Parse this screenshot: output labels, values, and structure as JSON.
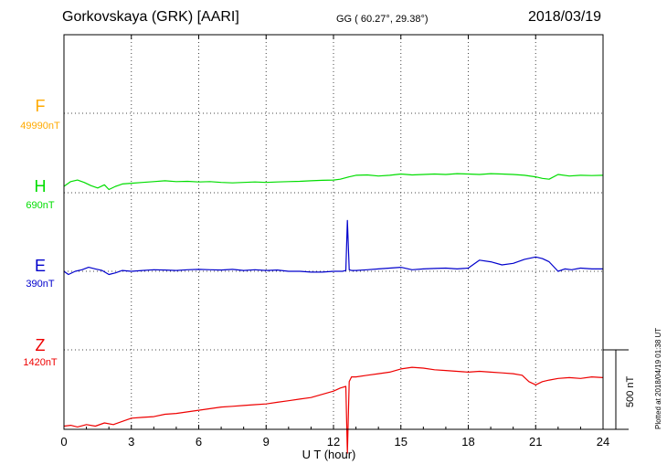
{
  "header": {
    "station": "Gorkovskaya (GRK)  [AARI]",
    "coordinates": "GG ( 60.27°,  29.38°)",
    "date": "2018/03/19"
  },
  "components": [
    {
      "id": "F",
      "letter": "F",
      "baseline": "49990nT",
      "color": "#ffaa00"
    },
    {
      "id": "H",
      "letter": "H",
      "baseline": "690nT",
      "color": "#00dd00"
    },
    {
      "id": "E",
      "letter": "E",
      "baseline": "390nT",
      "color": "#0000cc"
    },
    {
      "id": "Z",
      "letter": "Z",
      "baseline": "1420nT",
      "color": "#ee0000"
    }
  ],
  "scale_bar": {
    "label": "500 nT"
  },
  "footer": "Plotted at 2018/04/19 01:38 UT",
  "chart_data": {
    "type": "line",
    "xlabel": "U T (hour)",
    "xlim": [
      0,
      24
    ],
    "x_ticks": [
      0,
      3,
      6,
      9,
      12,
      15,
      18,
      21,
      24
    ],
    "grid": true,
    "series": [
      {
        "name": "H",
        "unit": "nT",
        "baseline": 690,
        "color": "#00dd00",
        "x": [
          0,
          0.3,
          0.6,
          0.9,
          1.2,
          1.5,
          1.8,
          2.0,
          2.3,
          2.6,
          3,
          3.5,
          4,
          4.5,
          5,
          5.5,
          6,
          6.5,
          7,
          7.5,
          8,
          8.5,
          9,
          9.5,
          10,
          10.5,
          11,
          11.5,
          12,
          12.3,
          12.7,
          13,
          13.5,
          14,
          14.5,
          15,
          15.5,
          16,
          16.5,
          17,
          17.5,
          18,
          18.5,
          19,
          19.5,
          20,
          20.5,
          21,
          21.3,
          21.6,
          22,
          22.5,
          23,
          23.5,
          24
        ],
        "y": [
          40,
          70,
          80,
          65,
          45,
          30,
          50,
          20,
          40,
          55,
          60,
          65,
          70,
          75,
          70,
          72,
          68,
          70,
          65,
          62,
          65,
          68,
          65,
          68,
          70,
          72,
          75,
          78,
          80,
          85,
          100,
          110,
          112,
          105,
          110,
          118,
          112,
          115,
          118,
          115,
          120,
          118,
          115,
          120,
          118,
          115,
          110,
          100,
          90,
          85,
          115,
          105,
          110,
          108,
          110
        ]
      },
      {
        "name": "E",
        "unit": "nT",
        "baseline": 390,
        "color": "#0000cc",
        "x": [
          0,
          0.2,
          0.5,
          0.8,
          1.1,
          1.4,
          1.7,
          2.0,
          2.3,
          2.6,
          3,
          3.5,
          4,
          4.5,
          5,
          5.5,
          6,
          6.5,
          7,
          7.5,
          8,
          8.5,
          9,
          9.5,
          10,
          10.5,
          11,
          11.5,
          12,
          12.4,
          12.55,
          12.62,
          12.7,
          12.8,
          13,
          13.5,
          14,
          14.5,
          15,
          15.5,
          16,
          16.5,
          17,
          17.5,
          18,
          18.5,
          19,
          19.5,
          20,
          20.5,
          21,
          21.3,
          21.6,
          22,
          22.3,
          22.6,
          23,
          23.5,
          24
        ],
        "y": [
          0,
          -20,
          0,
          10,
          25,
          15,
          5,
          -20,
          -10,
          5,
          0,
          5,
          10,
          8,
          5,
          10,
          12,
          10,
          8,
          12,
          5,
          10,
          5,
          8,
          0,
          0,
          -5,
          -5,
          0,
          0,
          5,
          320,
          10,
          5,
          5,
          10,
          15,
          20,
          25,
          10,
          15,
          18,
          20,
          15,
          20,
          70,
          60,
          40,
          50,
          75,
          90,
          80,
          60,
          0,
          15,
          10,
          20,
          15,
          15
        ]
      },
      {
        "name": "Z",
        "unit": "nT",
        "baseline": 1420,
        "color": "#ee0000",
        "x": [
          0,
          0.3,
          0.6,
          1.0,
          1.4,
          1.8,
          2.2,
          2.6,
          3.0,
          3.5,
          4,
          4.5,
          5,
          5.5,
          6,
          6.5,
          7,
          7.5,
          8,
          8.5,
          9,
          9.5,
          10,
          10.5,
          11,
          11.5,
          12,
          12.3,
          12.55,
          12.62,
          12.7,
          12.8,
          13,
          13.5,
          14,
          14.5,
          15,
          15.5,
          16,
          16.5,
          17,
          17.5,
          18,
          18.5,
          19,
          19.5,
          20,
          20.4,
          20.7,
          21,
          21.3,
          21.6,
          22,
          22.5,
          23,
          23.5,
          24
        ],
        "y": [
          -480,
          -475,
          -485,
          -470,
          -480,
          -460,
          -470,
          -450,
          -430,
          -425,
          -420,
          -405,
          -400,
          -390,
          -380,
          -370,
          -360,
          -355,
          -350,
          -345,
          -340,
          -330,
          -320,
          -310,
          -300,
          -280,
          -260,
          -240,
          -230,
          -650,
          -200,
          -170,
          -170,
          -160,
          -150,
          -140,
          -120,
          -110,
          -115,
          -125,
          -130,
          -135,
          -140,
          -135,
          -140,
          -145,
          -150,
          -160,
          -200,
          -220,
          -200,
          -190,
          -180,
          -175,
          -180,
          -170,
          -175
        ]
      }
    ]
  }
}
